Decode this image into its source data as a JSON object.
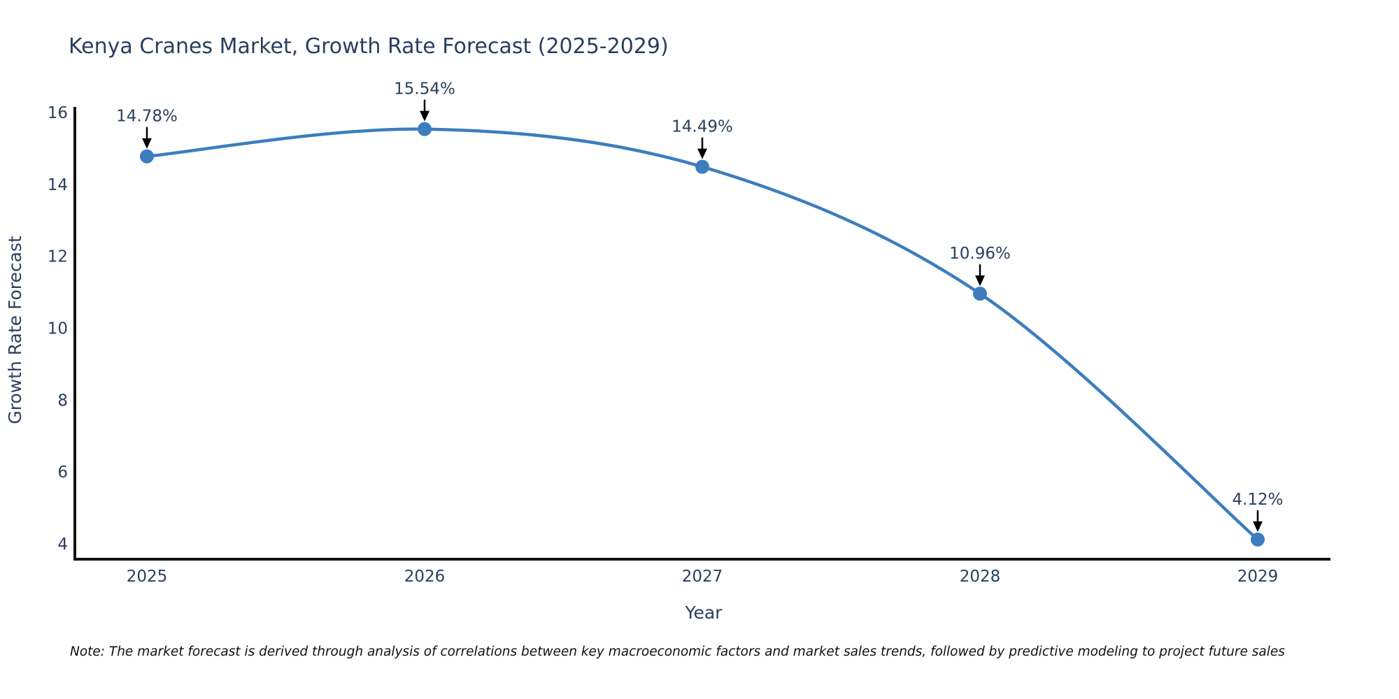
{
  "note": "Note: The market forecast is derived through analysis of correlations between key macroeconomic factors and market sales trends, followed by predictive modeling to project future sales",
  "chart_data": {
    "type": "line",
    "title": "Kenya Cranes Market, Growth Rate Forecast (2025-2029)",
    "xlabel": "Year",
    "ylabel": "Growth Rate Forecast",
    "categories": [
      "2025",
      "2026",
      "2027",
      "2028",
      "2029"
    ],
    "series": [
      {
        "name": "Growth Rate Forecast",
        "values": [
          14.78,
          15.54,
          14.49,
          10.96,
          4.12
        ]
      }
    ],
    "point_labels": [
      "14.78%",
      "15.54%",
      "14.49%",
      "10.96%",
      "4.12%"
    ],
    "annotation_arrows": true,
    "line_shape": "spline",
    "markers": true,
    "yticks": [
      4,
      6,
      8,
      10,
      12,
      14,
      16
    ],
    "ylim": [
      3.57,
      16.16
    ],
    "grid": false,
    "legend_position": "none",
    "colors": {
      "line": "#3d7dbe",
      "marker": "#3d7dbe",
      "axis_line": "#111111",
      "tick_text": "#2a3f5f",
      "title_text": "#2a3f5f",
      "annotation_text": "#2a3f5f",
      "arrow": "#000000",
      "note_text": "#111111",
      "background": "#ffffff"
    }
  }
}
